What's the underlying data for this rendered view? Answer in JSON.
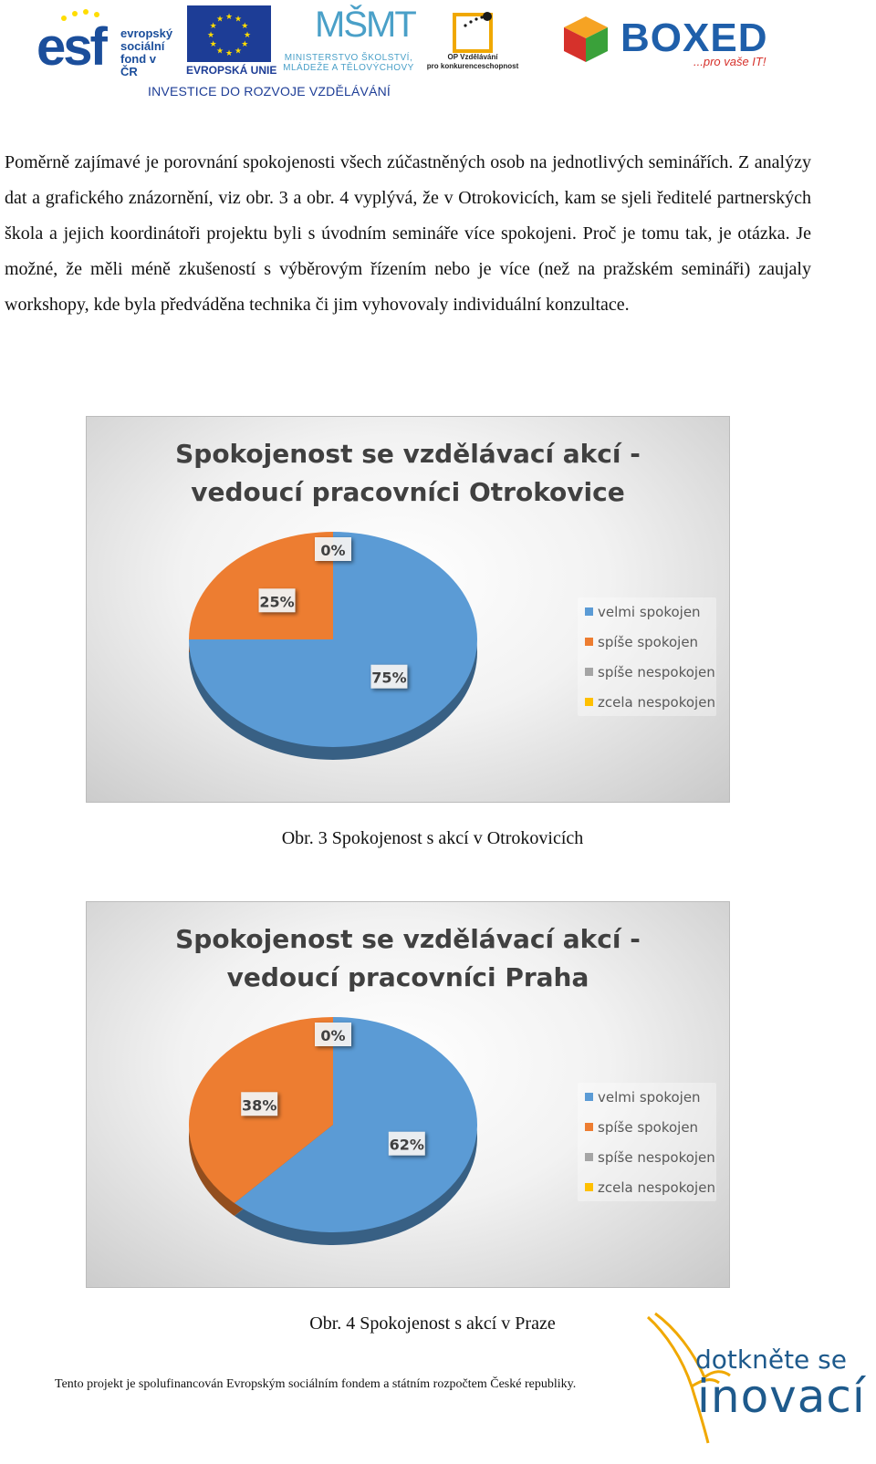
{
  "header": {
    "esf_word": "esf",
    "esf_sub": [
      "evropský",
      "sociální",
      "fond v ČR"
    ],
    "eu_label": "EVROPSKÁ UNIE",
    "msmt_mark": "MŠMT",
    "msmt_text": [
      "MINISTERSTVO ŠKOLSTVÍ,",
      "MLÁDEŽE A TĚLOVÝCHOVY"
    ],
    "op_text": [
      "OP Vzdělávání",
      "pro konkurenceschopnost"
    ],
    "boxed_word": "BOXED",
    "boxed_tag": "...pro vaše IT!",
    "investice": "INVESTICE DO ROZVOJE VZDĚLÁVÁNÍ",
    "colors": {
      "esf_blue": "#1b4e9b",
      "eu_blue": "#1d3d96",
      "eu_star": "#ffdd00",
      "msmt": "#4aa0c8",
      "boxed_blue": "#1f5faa",
      "boxed_red": "#d6312b"
    }
  },
  "paragraph": "Poměrně zajímavé je porovnání spokojenosti všech zúčastněných osob na jednotlivých seminářích. Z analýzy dat a grafického znázornění, viz obr. 3 a obr. 4 vyplývá, že v Otrokovicích, kam se sjeli ředitelé partnerských škola a jejich koordinátoři projektu byli s úvodním semináře více spokojeni. Proč je tomu tak, je otázka. Je možné, že měli méně zkušeností s výběrovým řízením nebo je více (než na pražském semináři) zaujaly workshopy, kde byla předváděna technika či jim vyhovovaly individuální konzultace.",
  "chart_data": [
    {
      "type": "pie",
      "title": [
        "Spokojenost se vzdělávací akcí -",
        "vedoucí pracovníci Otrokovice"
      ],
      "categories": [
        "velmi spokojen",
        "spíše spokojen",
        "spíše nespokojen",
        "zcela nespokojen"
      ],
      "values": [
        75,
        25,
        0,
        0
      ],
      "labels": [
        "75%",
        "25%",
        "0%"
      ],
      "colors": [
        "#5b9bd5",
        "#ed7d31",
        "#a5a5a5",
        "#ffc000"
      ],
      "legend": "right"
    },
    {
      "type": "pie",
      "title": [
        "Spokojenost se vzdělávací akcí -",
        "vedoucí pracovníci Praha"
      ],
      "categories": [
        "velmi spokojen",
        "spíše spokojen",
        "spíše nespokojen",
        "zcela nespokojen"
      ],
      "values": [
        62,
        38,
        0,
        0
      ],
      "labels": [
        "62%",
        "38%",
        "0%"
      ],
      "colors": [
        "#5b9bd5",
        "#ed7d31",
        "#a5a5a5",
        "#ffc000"
      ],
      "legend": "right"
    }
  ],
  "captions": [
    "Obr. 3 Spokojenost s akcí v Otrokovicích",
    "Obr. 4 Spokojenost s akcí v Praze"
  ],
  "footer": "Tento projekt je spolufinancován Evropským sociálním fondem a státním rozpočtem České republiky.",
  "dotknete": {
    "line1": "dotkněte se",
    "line2": "inovací",
    "color": "#1e5a8c"
  }
}
